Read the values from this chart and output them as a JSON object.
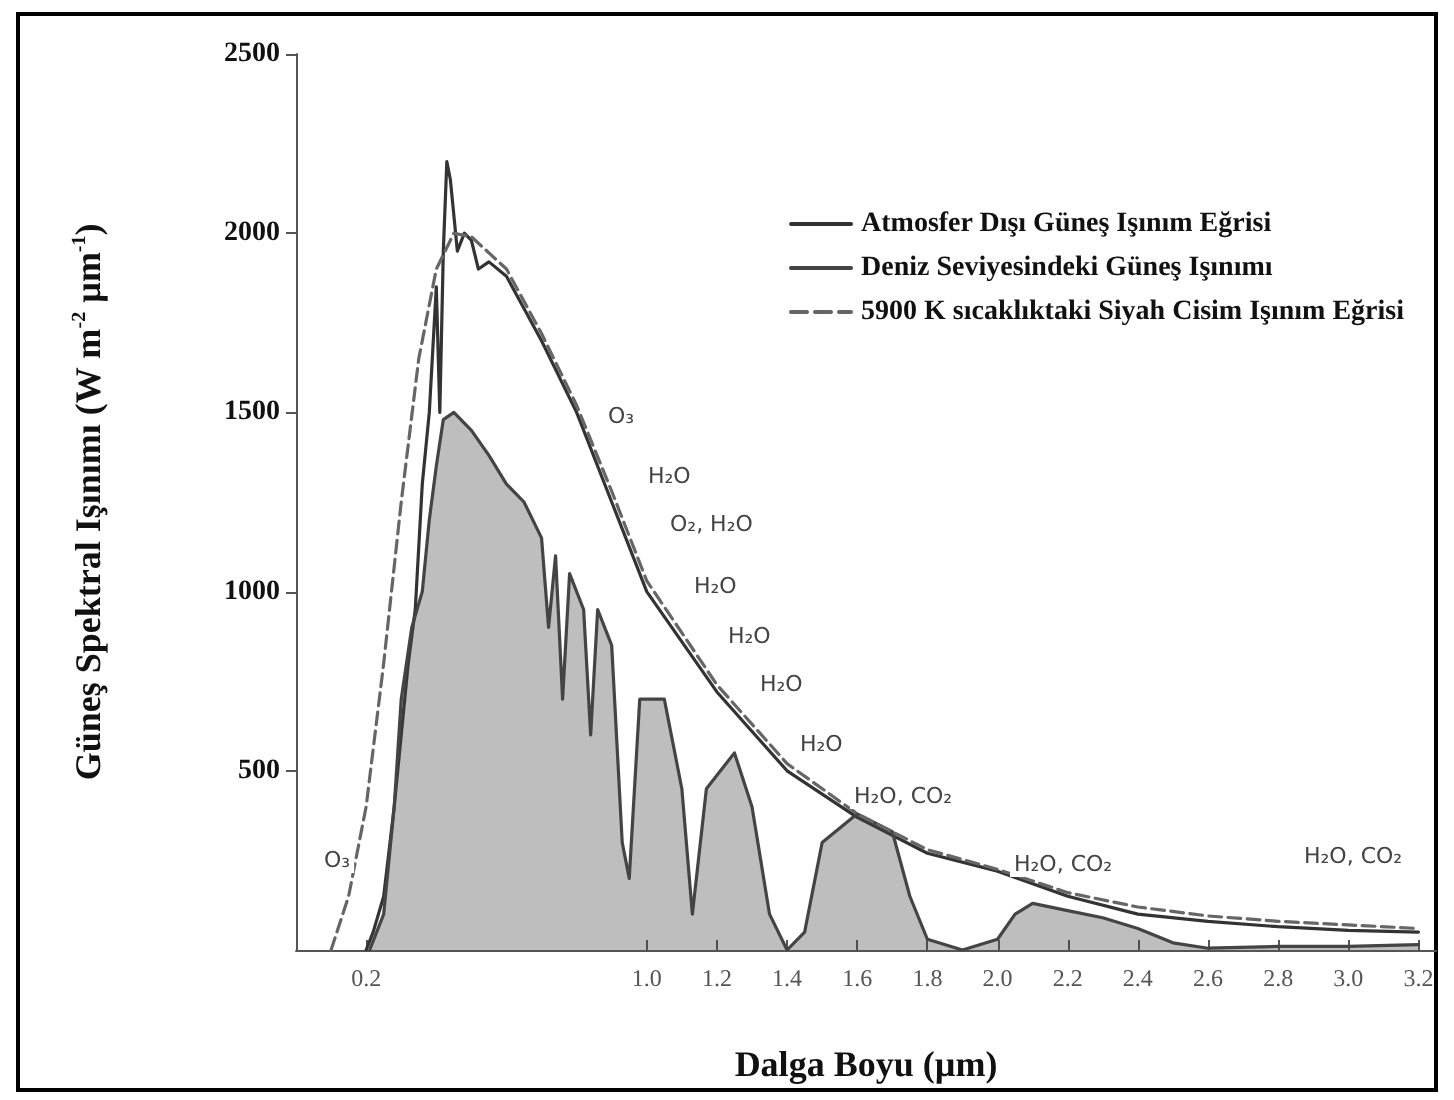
{
  "chart_data": {
    "type": "line",
    "xlabel": "Dalga Boyu (µm)",
    "ylabel": "Güneş Spektral Işınımı (W m$^{-2}$ µm$^{-1}$)",
    "xlim": [
      0,
      3.25
    ],
    "ylim": [
      0,
      2500
    ],
    "xticks": [
      0.2,
      {
        "value": 1,
        "label": "1.0"
      },
      1.2,
      1.4,
      1.6,
      1.8,
      {
        "value": 2,
        "label": "2.0"
      },
      2.2,
      2.4,
      2.6,
      2.8,
      {
        "value": 3,
        "label": "3.0"
      },
      3.2
    ],
    "yticks": [
      500,
      1000,
      1500,
      2000,
      2500
    ],
    "legend": "top right",
    "grid": false,
    "marker": "none",
    "series": [
      {
        "name": "Atmosfer Dışı Güneş Işınım Eğrisi",
        "color": "#333333",
        "line_style": "solid",
        "x": [
          0.2,
          0.22,
          0.25,
          0.28,
          0.3,
          0.32,
          0.34,
          0.36,
          0.38,
          0.4,
          0.41,
          0.42,
          0.43,
          0.44,
          0.46,
          0.48,
          0.5,
          0.52,
          0.55,
          0.6,
          0.7,
          0.8,
          0.9,
          1.0,
          1.2,
          1.4,
          1.6,
          1.8,
          2.0,
          2.2,
          2.4,
          2.6,
          2.8,
          3.0,
          3.2
        ],
        "values": [
          0,
          50,
          150,
          400,
          600,
          800,
          950,
          1300,
          1500,
          1850,
          1500,
          1950,
          2200,
          2150,
          1950,
          2000,
          1980,
          1900,
          1920,
          1880,
          1700,
          1500,
          1250,
          1000,
          720,
          500,
          370,
          270,
          220,
          150,
          100,
          80,
          65,
          55,
          50
        ]
      },
      {
        "name": "Deniz Seviyesindeki Güneş Işınımı",
        "type": "area",
        "color": "#444444",
        "line_style": "solid",
        "x": [
          0.21,
          0.25,
          0.28,
          0.3,
          0.33,
          0.36,
          0.38,
          0.4,
          0.42,
          0.45,
          0.5,
          0.55,
          0.6,
          0.65,
          0.7,
          0.72,
          0.74,
          0.76,
          0.78,
          0.82,
          0.84,
          0.86,
          0.9,
          0.93,
          0.95,
          0.98,
          1.05,
          1.1,
          1.13,
          1.17,
          1.25,
          1.3,
          1.35,
          1.4,
          1.45,
          1.5,
          1.6,
          1.7,
          1.75,
          1.8,
          1.9,
          2.0,
          2.05,
          2.1,
          2.2,
          2.3,
          2.4,
          2.5,
          2.6,
          2.8,
          3.0,
          3.2
        ],
        "values": [
          0,
          100,
          400,
          700,
          900,
          1000,
          1200,
          1350,
          1480,
          1500,
          1450,
          1380,
          1300,
          1250,
          1150,
          900,
          1100,
          700,
          1050,
          950,
          600,
          950,
          850,
          300,
          200,
          700,
          700,
          450,
          100,
          450,
          550,
          400,
          100,
          0,
          50,
          300,
          380,
          330,
          150,
          30,
          0,
          30,
          100,
          130,
          110,
          90,
          60,
          20,
          5,
          10,
          10,
          15
        ]
      },
      {
        "name": "5900 K sıcaklıktaki Siyah Cisim Işınım Eğrisi",
        "color": "#666666",
        "line_style": "dashed",
        "x": [
          0.1,
          0.15,
          0.2,
          0.25,
          0.3,
          0.35,
          0.4,
          0.45,
          0.5,
          0.6,
          0.7,
          0.8,
          0.9,
          1.0,
          1.2,
          1.4,
          1.6,
          1.8,
          2.0,
          2.2,
          2.4,
          2.6,
          2.8,
          3.0,
          3.2
        ],
        "values": [
          0,
          150,
          400,
          800,
          1250,
          1650,
          1900,
          2000,
          1990,
          1900,
          1720,
          1520,
          1280,
          1030,
          740,
          520,
          380,
          280,
          225,
          160,
          120,
          95,
          80,
          70,
          60
        ]
      }
    ],
    "annotations": [
      "O₃",
      "O₃",
      "H₂O",
      "O₂, H₂O",
      "H₂O",
      "H₂O",
      "H₂O",
      "H₂O",
      "H₂O, CO₂",
      "H₂O, CO₂",
      "H₂O, CO₂"
    ]
  }
}
